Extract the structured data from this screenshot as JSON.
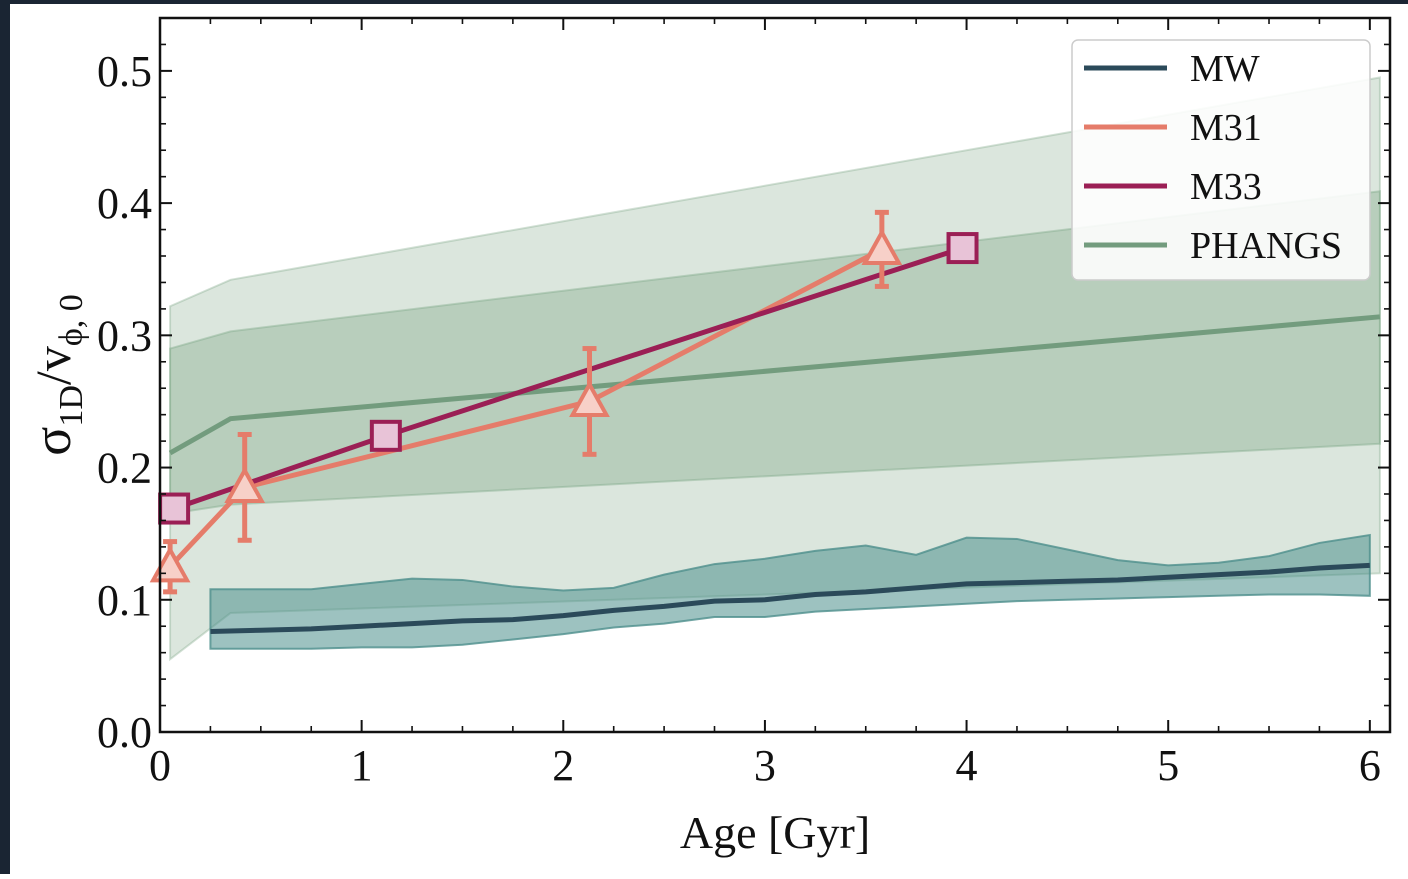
{
  "chart_data": {
    "type": "line",
    "xlabel": "Age [Gyr]",
    "ylabel_main": "σ",
    "ylabel_sub": "1D",
    "ylabel_mid": "/v",
    "ylabel_sub2": "ϕ, 0",
    "xlim": [
      0,
      6.1
    ],
    "ylim": [
      0,
      0.54
    ],
    "xticks": [
      0,
      1,
      2,
      3,
      4,
      5,
      6
    ],
    "xtick_labels": [
      "0",
      "1",
      "2",
      "3",
      "4",
      "5",
      "6"
    ],
    "yticks": [
      0.0,
      0.1,
      0.2,
      0.3,
      0.4,
      0.5
    ],
    "ytick_labels": [
      "0.0",
      "0.1",
      "0.2",
      "0.3",
      "0.4",
      "0.5"
    ],
    "legend_position": "top-right",
    "colors": {
      "MW": "#2b4a5a",
      "M31": "#e57c6a",
      "M33": "#9b1f55",
      "PHANGS": "#739c7e",
      "MW_band": "#4d8f8c",
      "PHANGS_band": "#7ea786",
      "M33_marker_fill": "#e8c3d7",
      "M31_marker_fill": "#f7d0c8"
    },
    "series": [
      {
        "name": "MW",
        "x": [
          0.25,
          0.5,
          0.75,
          1.0,
          1.25,
          1.5,
          1.75,
          2.0,
          2.25,
          2.5,
          2.75,
          3.0,
          3.25,
          3.5,
          3.75,
          4.0,
          4.25,
          4.5,
          4.75,
          5.0,
          5.25,
          5.5,
          5.75,
          6.0
        ],
        "y": [
          0.076,
          0.077,
          0.078,
          0.08,
          0.082,
          0.084,
          0.085,
          0.088,
          0.092,
          0.095,
          0.099,
          0.1,
          0.104,
          0.106,
          0.109,
          0.112,
          0.113,
          0.114,
          0.115,
          0.117,
          0.119,
          0.121,
          0.124,
          0.126
        ],
        "band_upper": [
          0.108,
          0.108,
          0.108,
          0.112,
          0.116,
          0.115,
          0.11,
          0.107,
          0.109,
          0.119,
          0.127,
          0.131,
          0.137,
          0.141,
          0.134,
          0.147,
          0.146,
          0.138,
          0.13,
          0.126,
          0.128,
          0.133,
          0.143,
          0.149
        ],
        "band_lower": [
          0.063,
          0.063,
          0.063,
          0.064,
          0.064,
          0.066,
          0.07,
          0.074,
          0.079,
          0.082,
          0.087,
          0.087,
          0.091,
          0.093,
          0.095,
          0.097,
          0.099,
          0.1,
          0.101,
          0.102,
          0.103,
          0.104,
          0.104,
          0.103
        ]
      },
      {
        "name": "M31",
        "x": [
          0.05,
          0.42,
          2.13,
          3.58
        ],
        "y": [
          0.125,
          0.185,
          0.25,
          0.365
        ],
        "err": [
          0.019,
          0.04,
          0.04,
          0.028
        ]
      },
      {
        "name": "M33",
        "x": [
          0.07,
          1.12,
          3.98
        ],
        "y": [
          0.169,
          0.224,
          0.366
        ]
      },
      {
        "name": "PHANGS",
        "x": [
          0.05,
          0.35,
          6.05
        ],
        "y": [
          0.211,
          0.237,
          0.314
        ],
        "inner_upper": [
          0.29,
          0.303,
          0.409
        ],
        "inner_lower": [
          0.165,
          0.172,
          0.218
        ],
        "outer_upper": [
          0.322,
          0.342,
          0.495
        ],
        "outer_lower": [
          0.055,
          0.09,
          0.12
        ]
      }
    ]
  }
}
